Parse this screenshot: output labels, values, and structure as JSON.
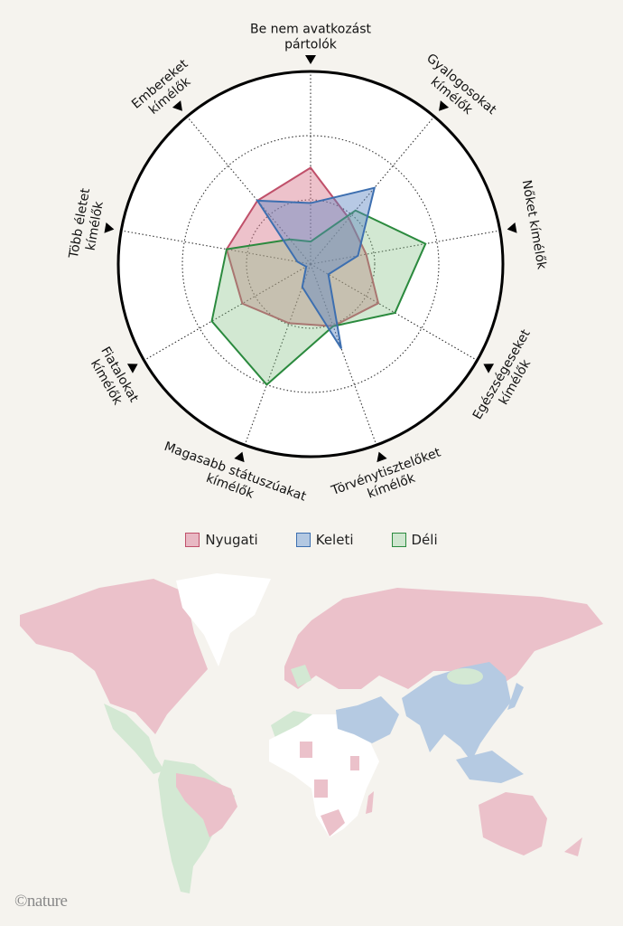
{
  "chart_data": {
    "type": "radar",
    "axes": [
      [
        "Be nem avatkozást",
        "pártolók"
      ],
      [
        "Gyalogosokat",
        "kímélők"
      ],
      [
        "Nőket kímélők"
      ],
      [
        "Egészségeseket",
        "kímélők"
      ],
      [
        "Törvénytisztelőket",
        "kímélők"
      ],
      [
        "Magasabb státuszúakat",
        "kímélők"
      ],
      [
        "Fiatalokat",
        "kímélők"
      ],
      [
        "Több életet",
        "kímélők"
      ],
      [
        "Embereket",
        "kímélők"
      ]
    ],
    "range": [
      0,
      3
    ],
    "grid": true,
    "legend_position": "bottom",
    "series": [
      {
        "name": "Nyugati",
        "color": "#c0506a",
        "fill": "rgba(214,120,140,0.45)",
        "values": [
          1.5,
          0.93,
          0.88,
          1.22,
          1.03,
          0.98,
          1.23,
          1.33,
          1.29
        ]
      },
      {
        "name": "Déli",
        "color": "#2b8a3e",
        "fill": "rgba(125,190,125,0.35)",
        "values": [
          0.35,
          1.09,
          1.82,
          1.52,
          1.03,
          2.0,
          1.78,
          1.33,
          0.5
        ]
      },
      {
        "name": "Keleti",
        "color": "#3d6fb0",
        "fill": "rgba(95,135,195,0.45)",
        "values": [
          0.95,
          1.55,
          0.75,
          0.32,
          1.4,
          0.38,
          0.08,
          0.21,
          1.29
        ]
      }
    ]
  },
  "legend": [
    {
      "label": "Nyugati",
      "color": "#e8b8c3",
      "border": "#c0506a"
    },
    {
      "label": "Keleti",
      "color": "#b3c8e2",
      "border": "#3d6fb0"
    },
    {
      "label": "Déli",
      "color": "#cfe6cf",
      "border": "#2b8a3e"
    }
  ],
  "map": {
    "colors": {
      "Nyugati": "#ebc1ca",
      "Keleti": "#b5cae2",
      "Déli": "#d3e8d3",
      "none": "#ffffff"
    }
  },
  "credit": "©nature"
}
